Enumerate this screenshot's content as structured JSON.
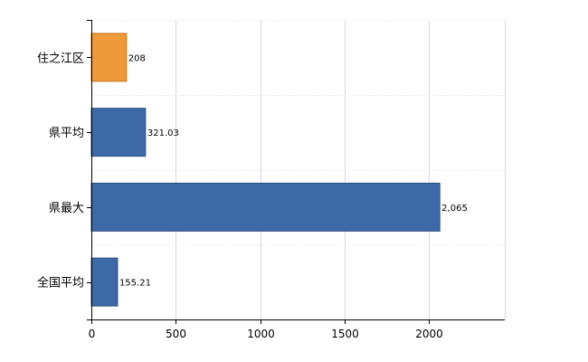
{
  "chart_data": {
    "type": "bar",
    "orientation": "horizontal",
    "categories": [
      "住之江区",
      "県平均",
      "県最大",
      "全国平均"
    ],
    "values": [
      208,
      321.03,
      2065,
      155.21
    ],
    "data_labels": [
      "208",
      "321.03",
      "2,065",
      "155.21"
    ],
    "xlim": [
      0,
      2450
    ],
    "xticks": [
      0,
      500,
      1000,
      1500,
      2000
    ],
    "xtick_labels": [
      "0",
      "500",
      "1000",
      "1500",
      "2000"
    ],
    "grid": true,
    "legend": "none",
    "bar_colors": [
      "#ee9a3a",
      "#3d6aa6",
      "#3d6aa6",
      "#3d6aa6"
    ],
    "bar_border_colors": [
      "#c9741c",
      "#2b4f80",
      "#2b4f80",
      "#2b4f80"
    ]
  }
}
